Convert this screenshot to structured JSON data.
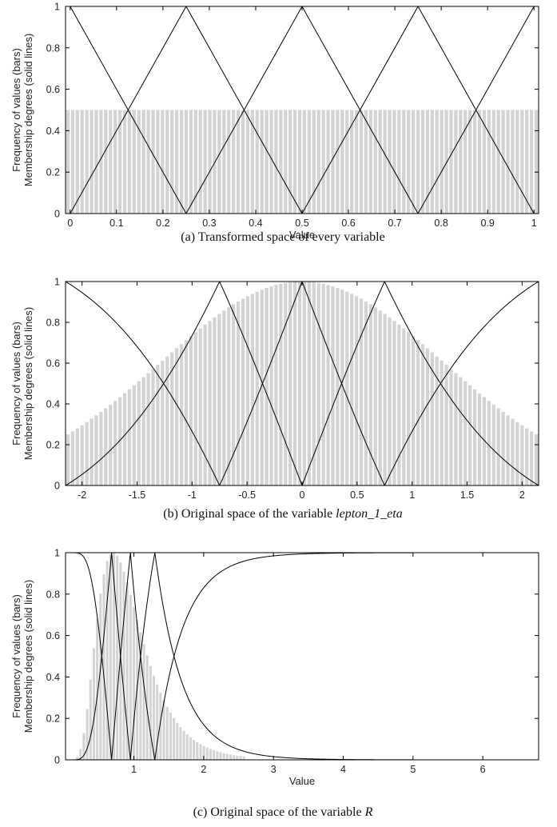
{
  "chart_data": [
    {
      "id": "a",
      "type": "bar",
      "caption": "(a) Transformed space of every variable",
      "caption_var": "",
      "xlabel": "Value",
      "ylabel_lines": [
        "Frequency of values (bars)",
        "Membership degrees (solid lines)"
      ],
      "xlim": [
        -0.01,
        1.01
      ],
      "ylim": [
        0,
        1
      ],
      "xticks": [
        0,
        0.1,
        0.2,
        0.3,
        0.4,
        0.5,
        0.6,
        0.7,
        0.8,
        0.9,
        1
      ],
      "xtick_labels": [
        "0",
        "0.1",
        "0.2",
        "0.3",
        "0.4",
        "0.5",
        "0.6",
        "0.7",
        "0.8",
        "0.9",
        "1"
      ],
      "yticks": [
        0,
        0.2,
        0.4,
        0.6,
        0.8,
        1
      ],
      "ytick_labels": [
        "0",
        "0.2",
        "0.4",
        "0.6",
        "0.8",
        "1"
      ],
      "histogram": {
        "x_range": [
          -0.01,
          1.01
        ],
        "bins": 100,
        "kind": "uniform",
        "height": 0.5
      },
      "membership": {
        "kind": "triangular",
        "centers": [
          0,
          0.25,
          0.5,
          0.75,
          1
        ]
      }
    },
    {
      "id": "b",
      "type": "bar",
      "caption": "(b) Original space of the variable ",
      "caption_var": "lepton_1_eta",
      "xlabel": "",
      "ylabel_lines": [
        "Frequency of values (bars)",
        "Membership degrees (solid lines)"
      ],
      "xlim": [
        -2.15,
        2.15
      ],
      "ylim": [
        0,
        1
      ],
      "xticks": [
        -2,
        -1.5,
        -1,
        -0.5,
        0,
        0.5,
        1,
        1.5,
        2
      ],
      "xtick_labels": [
        "-2",
        "-1.5",
        "-1",
        "-0.5",
        "0",
        "0.5",
        "1",
        "1.5",
        "2"
      ],
      "yticks": [
        0,
        0.2,
        0.4,
        0.6,
        0.8,
        1
      ],
      "ytick_labels": [
        "0",
        "0.2",
        "0.4",
        "0.6",
        "0.8",
        "1"
      ],
      "histogram": {
        "x_range": [
          -2.15,
          2.15
        ],
        "bins": 100,
        "kind": "gaussian",
        "center": 0,
        "sigma": 1.28,
        "peak": 1.0
      },
      "membership": {
        "kind": "transformed",
        "centers": [
          -2.15,
          -0.75,
          0,
          0.75,
          2.15
        ],
        "curve": "gaussian",
        "mu": 0,
        "sigma": 1.28
      }
    },
    {
      "id": "c",
      "type": "bar",
      "caption": "(c) Original space of the variable ",
      "caption_var": "R",
      "xlabel": "Value",
      "ylabel_lines": [
        "Frequency of values (bars)",
        "Membership degrees (solid lines)"
      ],
      "xlim": [
        0.02,
        6.8
      ],
      "ylim": [
        0,
        1
      ],
      "xticks": [
        1,
        2,
        3,
        4,
        5,
        6
      ],
      "xtick_labels": [
        "1",
        "2",
        "3",
        "4",
        "5",
        "6"
      ],
      "yticks": [
        0,
        0.2,
        0.4,
        0.6,
        0.8,
        1
      ],
      "ytick_labels": [
        "0",
        "0.2",
        "0.4",
        "0.6",
        "0.8",
        "1"
      ],
      "histogram": {
        "x_range": [
          0.02,
          2.6
        ],
        "bins": 54,
        "kind": "lognormal",
        "mu": -0.15,
        "sigma": 0.45,
        "peak": 1.0
      },
      "membership": {
        "kind": "transformed",
        "centers": [
          0.02,
          0.68,
          0.95,
          1.3,
          6.8
        ],
        "curve": "lognormal",
        "mu": -0.15,
        "sigma": 0.45
      }
    }
  ]
}
